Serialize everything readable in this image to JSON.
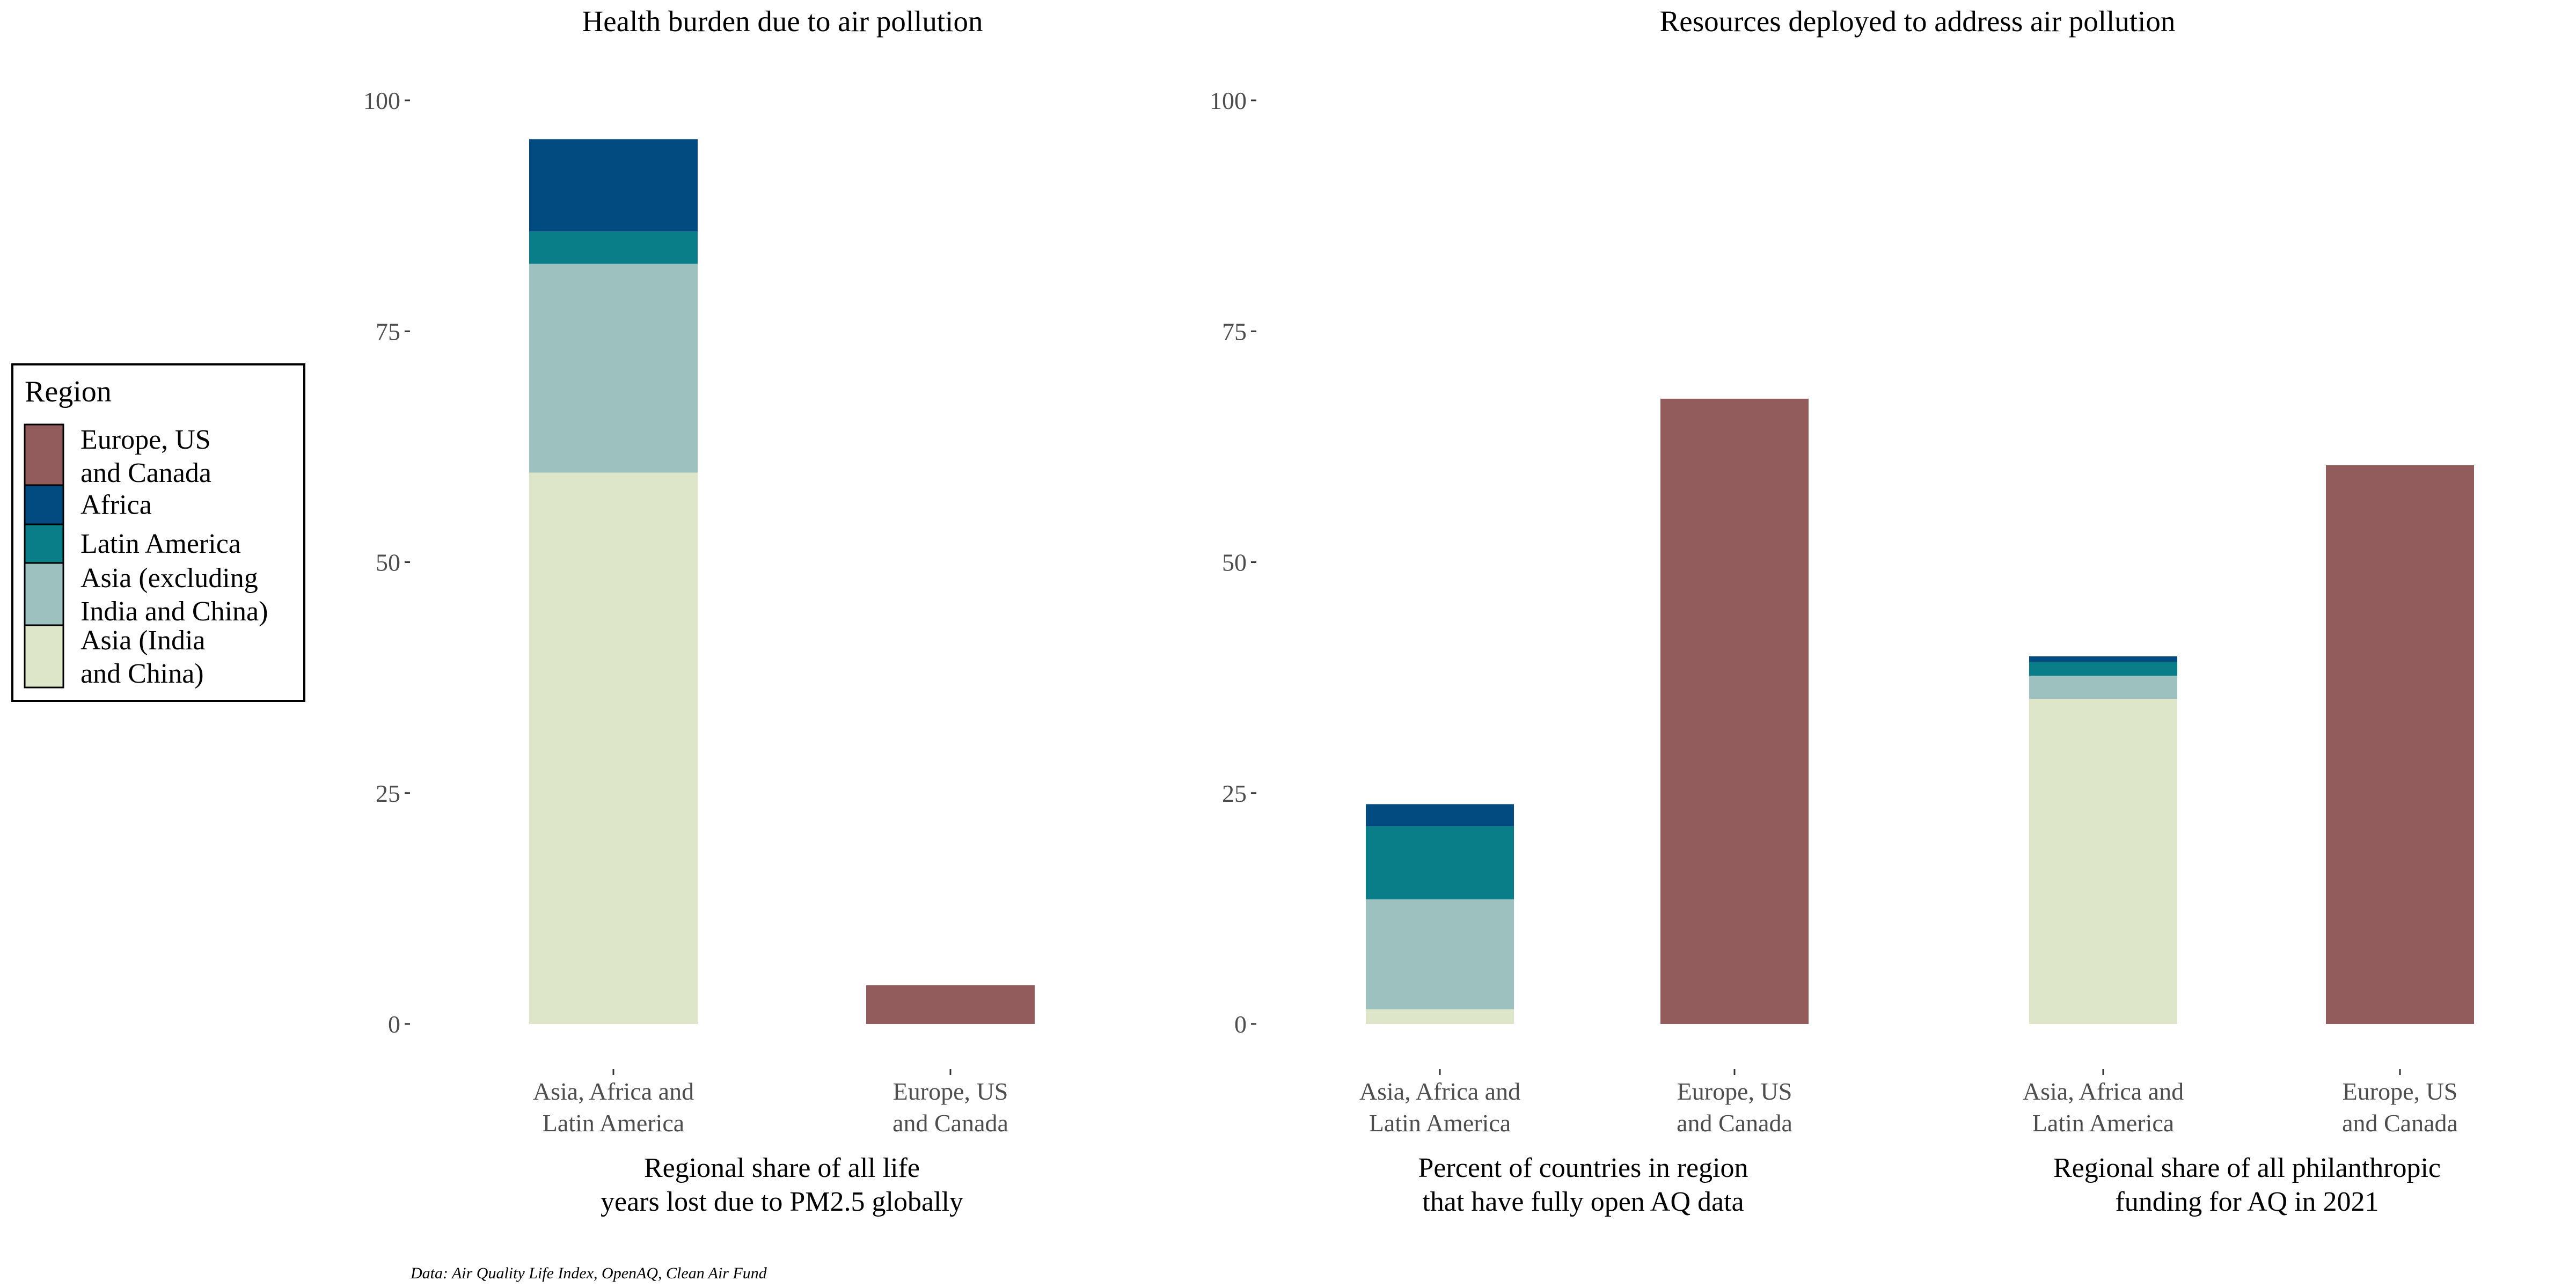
{
  "legend": {
    "title": "Region",
    "items": [
      {
        "key": "eu",
        "lines": [
          "Europe, US",
          "and Canada"
        ]
      },
      {
        "key": "africa",
        "lines": [
          "Africa"
        ]
      },
      {
        "key": "latam",
        "lines": [
          "Latin America"
        ]
      },
      {
        "key": "asia_ex",
        "lines": [
          "Asia (excluding",
          "India and China)"
        ]
      },
      {
        "key": "asia_ic",
        "lines": [
          "Asia (India",
          "and China)"
        ]
      }
    ]
  },
  "colors": {
    "eu": "#935c5c",
    "africa": "#014b80",
    "latam": "#0a7e88",
    "asia_ex": "#9cc1be",
    "asia_ic": "#dde6c8"
  },
  "caption": "Data: Air Quality Life Index, OpenAQ, Clean Air Fund",
  "chart_data": [
    {
      "type": "bar",
      "stacked": true,
      "title": "Health burden due to air pollution",
      "ylim": [
        0,
        100
      ],
      "yticks": [
        0,
        25,
        50,
        75,
        100
      ],
      "groups": [
        {
          "xlabel": [
            "Regional share of all life",
            "years lost due to PM2.5 globally"
          ],
          "bars": [
            {
              "category": [
                "Asia, Africa and",
                "Latin America"
              ],
              "stack": [
                {
                  "region": "asia_ic",
                  "value": 59.7
                },
                {
                  "region": "asia_ex",
                  "value": 22.6
                },
                {
                  "region": "latam",
                  "value": 3.5
                },
                {
                  "region": "africa",
                  "value": 10.0
                }
              ]
            },
            {
              "category": [
                "Europe, US",
                "and Canada"
              ],
              "stack": [
                {
                  "region": "eu",
                  "value": 4.2
                }
              ]
            }
          ]
        }
      ]
    },
    {
      "type": "bar",
      "stacked": true,
      "title": "Resources deployed to address air pollution",
      "ylim": [
        0,
        100
      ],
      "yticks": [
        0,
        25,
        50,
        75,
        100
      ],
      "groups": [
        {
          "xlabel": [
            "Percent of countries in region",
            "that have fully open AQ data"
          ],
          "bars": [
            {
              "category": [
                "Asia, Africa and",
                "Latin America"
              ],
              "stack": [
                {
                  "region": "asia_ic",
                  "value": 1.6
                },
                {
                  "region": "asia_ex",
                  "value": 11.9
                },
                {
                  "region": "latam",
                  "value": 7.9
                },
                {
                  "region": "africa",
                  "value": 2.4
                }
              ]
            },
            {
              "category": [
                "Europe, US",
                "and Canada"
              ],
              "stack": [
                {
                  "region": "eu",
                  "value": 67.7
                }
              ]
            }
          ]
        },
        {
          "xlabel": [
            "Regional share of all philanthropic",
            "funding for AQ in 2021"
          ],
          "bars": [
            {
              "category": [
                "Asia, Africa and",
                "Latin America"
              ],
              "stack": [
                {
                  "region": "asia_ic",
                  "value": 35.2
                },
                {
                  "region": "asia_ex",
                  "value": 2.5
                },
                {
                  "region": "latam",
                  "value": 1.5
                },
                {
                  "region": "africa",
                  "value": 0.6
                }
              ]
            },
            {
              "category": [
                "Europe, US",
                "and Canada"
              ],
              "stack": [
                {
                  "region": "eu",
                  "value": 60.5
                }
              ]
            }
          ]
        }
      ]
    }
  ]
}
